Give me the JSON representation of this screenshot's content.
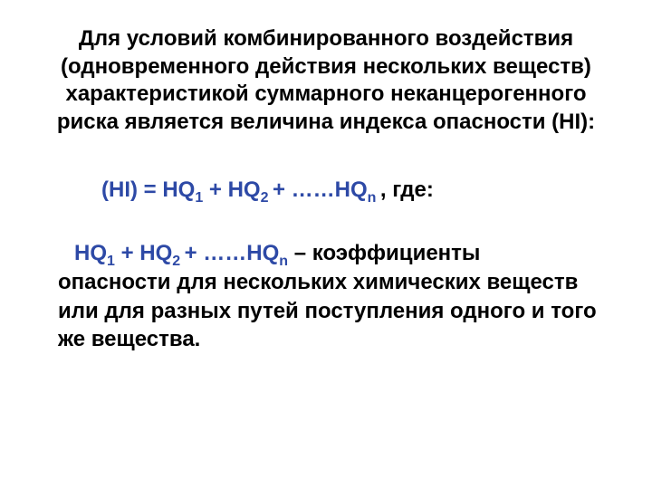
{
  "colors": {
    "text": "#000000",
    "accent": "#2d49a6",
    "background": "#ffffff"
  },
  "typography": {
    "font_family": "Arial",
    "base_size_pt": 18,
    "weight": 700,
    "sub_size_pt": 12
  },
  "intro": {
    "text": "Для условий комбинированного воздействия (одновременного действия нескольких веществ) характеристикой суммарного неканцерогенного риска является величина индекса опасности (HI):"
  },
  "formula": {
    "p1": "(HI) = HQ",
    "s1": "1",
    "p2": " + HQ",
    "s2": "2 ",
    "p3": "+ ……HQ",
    "s3": "n ",
    "tail": ", где:"
  },
  "definition": {
    "p1": "HQ",
    "s1": "1",
    "p2": " + HQ",
    "s2": "2 ",
    "p3": "+ ……HQ",
    "s3": "n",
    "rest": " – коэффициенты опасности для нескольких химических веществ или для разных путей поступления одного и того же вещества."
  }
}
